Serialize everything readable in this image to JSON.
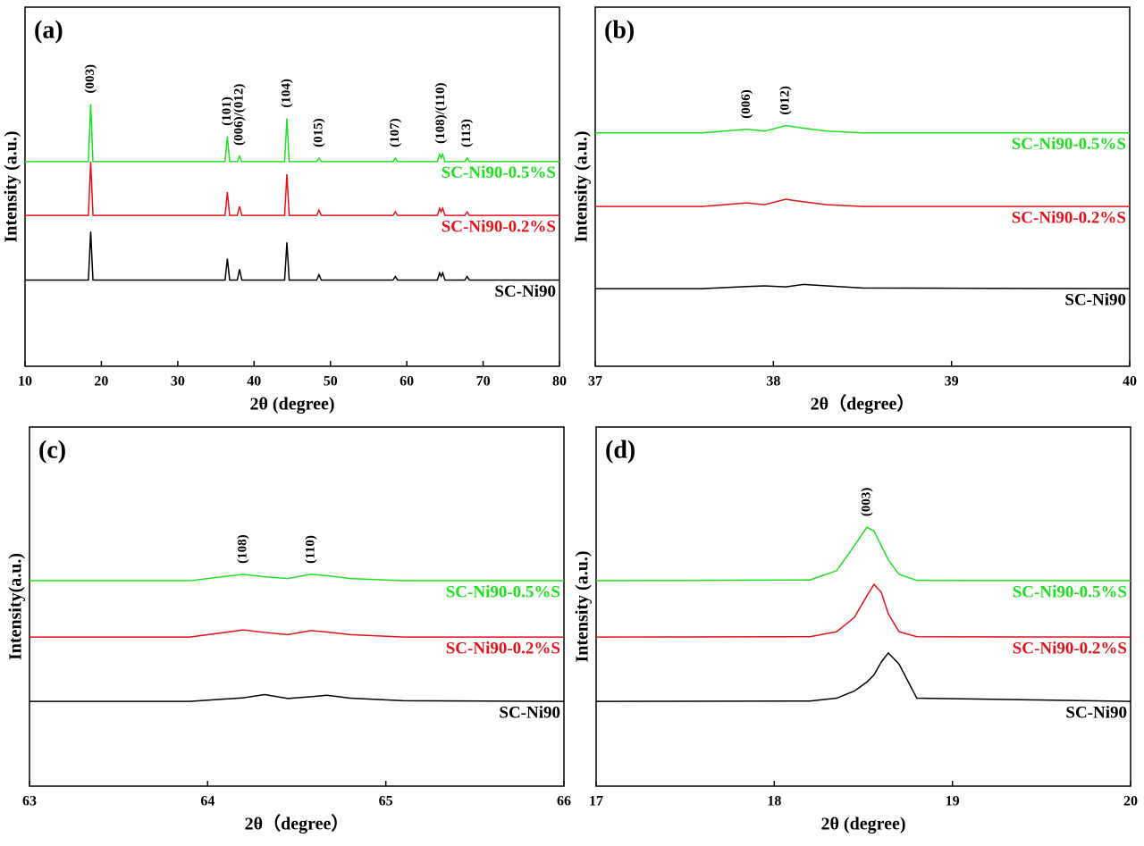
{
  "chart_data": [
    {
      "type": "line",
      "title": "(a)",
      "x_label": "2θ (degree)",
      "y_label": "Intensity (a.u.)",
      "xlim": [
        10,
        80
      ],
      "xticks": [
        10,
        20,
        30,
        40,
        50,
        60,
        70,
        80
      ],
      "ylim": [
        0,
        100
      ],
      "x": [
        10,
        18.3,
        18.6,
        18.9,
        36.2,
        36.5,
        36.8,
        37.8,
        38.1,
        38.4,
        44.0,
        44.3,
        44.6,
        48.2,
        48.5,
        48.8,
        58.2,
        58.5,
        58.8,
        64.0,
        64.3,
        64.5,
        64.7,
        65.0,
        67.6,
        67.9,
        68.2,
        80
      ],
      "series": [
        {
          "name": "SC-Ni90-0.5%S",
          "color": "#1ee01e",
          "values": [
            57,
            57,
            73,
            57,
            57,
            64,
            57,
            57,
            58.5,
            57,
            57,
            69,
            57,
            57,
            58,
            57,
            57,
            58,
            57,
            57,
            59,
            58,
            59,
            57,
            57,
            58,
            57,
            57
          ]
        },
        {
          "name": "SC-Ni90-0.2%S",
          "color": "#e3131b",
          "values": [
            42,
            42,
            57,
            42,
            42,
            48.5,
            42,
            42,
            44.5,
            42,
            42,
            53.5,
            42,
            42,
            43.5,
            42,
            42,
            43,
            42,
            42,
            44,
            43,
            44,
            42,
            42,
            43,
            42,
            42
          ]
        },
        {
          "name": "SC-Ni90",
          "color": "#000000",
          "values": [
            24,
            24,
            37.5,
            24,
            24,
            30,
            24,
            24,
            27,
            24,
            24,
            34.5,
            24,
            24,
            25.5,
            24,
            24,
            25,
            24,
            24,
            26,
            25,
            26,
            24,
            24,
            25,
            24,
            24
          ]
        }
      ],
      "annotations": [
        {
          "text": "(003)",
          "x": 18.6
        },
        {
          "text": "(101)",
          "x": 36.5
        },
        {
          "text": "(006)/(012)",
          "x": 38.1
        },
        {
          "text": "(104)",
          "x": 44.3
        },
        {
          "text": "(015)",
          "x": 48.5
        },
        {
          "text": "(107)",
          "x": 58.5
        },
        {
          "text": "(108)/(110)",
          "x": 64.5
        },
        {
          "text": "(113)",
          "x": 67.9
        }
      ]
    },
    {
      "type": "line",
      "title": "(b)",
      "x_label": "2θ（degree）",
      "y_label": "Intensity (a.u.)",
      "xlim": [
        37,
        40
      ],
      "xticks": [
        37,
        38,
        39,
        40
      ],
      "ylim": [
        0,
        100
      ],
      "x": [
        37,
        37.6,
        37.85,
        37.95,
        38.07,
        38.17,
        38.3,
        38.5,
        40
      ],
      "series": [
        {
          "name": "SC-Ni90-0.5%S",
          "color": "#1ee01e",
          "values": [
            65,
            65,
            66,
            65.5,
            67,
            66.3,
            65.5,
            65,
            65
          ]
        },
        {
          "name": "SC-Ni90-0.2%S",
          "color": "#e3131b",
          "values": [
            44.5,
            44.5,
            45.5,
            45,
            46.5,
            45.8,
            45,
            44.5,
            44.5
          ]
        },
        {
          "name": "SC-Ni90",
          "color": "#000000",
          "values": [
            21.6,
            21.6,
            22.2,
            22.4,
            22.1,
            22.8,
            22.4,
            21.8,
            21.6
          ]
        }
      ],
      "annotations": [
        {
          "text": "(006)",
          "x": 37.85
        },
        {
          "text": "(012)",
          "x": 38.07
        }
      ]
    },
    {
      "type": "line",
      "title": "(c)",
      "x_label": "2θ（degree）",
      "y_label": "Intensity(a.u.)",
      "xlim": [
        63,
        66
      ],
      "xticks": [
        63,
        64,
        65,
        66
      ],
      "ylim": [
        0,
        100
      ],
      "x": [
        63,
        63.9,
        64.2,
        64.32,
        64.45,
        64.58,
        64.67,
        64.8,
        65.1,
        66
      ],
      "series": [
        {
          "name": "SC-Ni90-0.5%S",
          "color": "#1ee01e",
          "values": [
            57.2,
            57.2,
            59,
            58.3,
            57.8,
            59,
            58.6,
            57.8,
            57.2,
            57.2
          ]
        },
        {
          "name": "SC-Ni90-0.2%S",
          "color": "#e3131b",
          "values": [
            41.5,
            41.5,
            43.5,
            42.8,
            42.2,
            43.3,
            42.9,
            42.2,
            41.5,
            41.5
          ]
        },
        {
          "name": "SC-Ni90",
          "color": "#000000",
          "values": [
            23.6,
            23.6,
            24.6,
            25.5,
            24.4,
            24.9,
            25.3,
            24.5,
            23.8,
            23.6
          ]
        }
      ],
      "annotations": [
        {
          "text": "(108)",
          "x": 64.2
        },
        {
          "text": "(110)",
          "x": 64.58
        }
      ]
    },
    {
      "type": "line",
      "title": "(d)",
      "x_label": "2θ (degree)",
      "y_label": "Intensity (a.u.)",
      "xlim": [
        17,
        20
      ],
      "xticks": [
        17,
        18,
        19,
        20
      ],
      "ylim": [
        0,
        100
      ],
      "x": [
        17,
        18.2,
        18.35,
        18.45,
        18.52,
        18.56,
        18.6,
        18.64,
        18.7,
        18.8,
        20
      ],
      "series": [
        {
          "name": "SC-Ni90-0.5%S",
          "color": "#1ee01e",
          "values": [
            57.2,
            57.4,
            60,
            67,
            72.1,
            71,
            67,
            63,
            59,
            57.3,
            57.2
          ]
        },
        {
          "name": "SC-Ni90-0.2%S",
          "color": "#e3131b",
          "values": [
            41.5,
            41.6,
            43,
            47,
            53,
            56.2,
            54,
            48,
            43,
            41.6,
            41.5
          ]
        },
        {
          "name": "SC-Ni90",
          "color": "#000000",
          "values": [
            23.6,
            23.7,
            24.5,
            26.5,
            29,
            31,
            34.5,
            37.1,
            34,
            24.5,
            23.6
          ]
        }
      ],
      "annotations": [
        {
          "text": "(003)",
          "x": 18.52
        }
      ]
    }
  ]
}
